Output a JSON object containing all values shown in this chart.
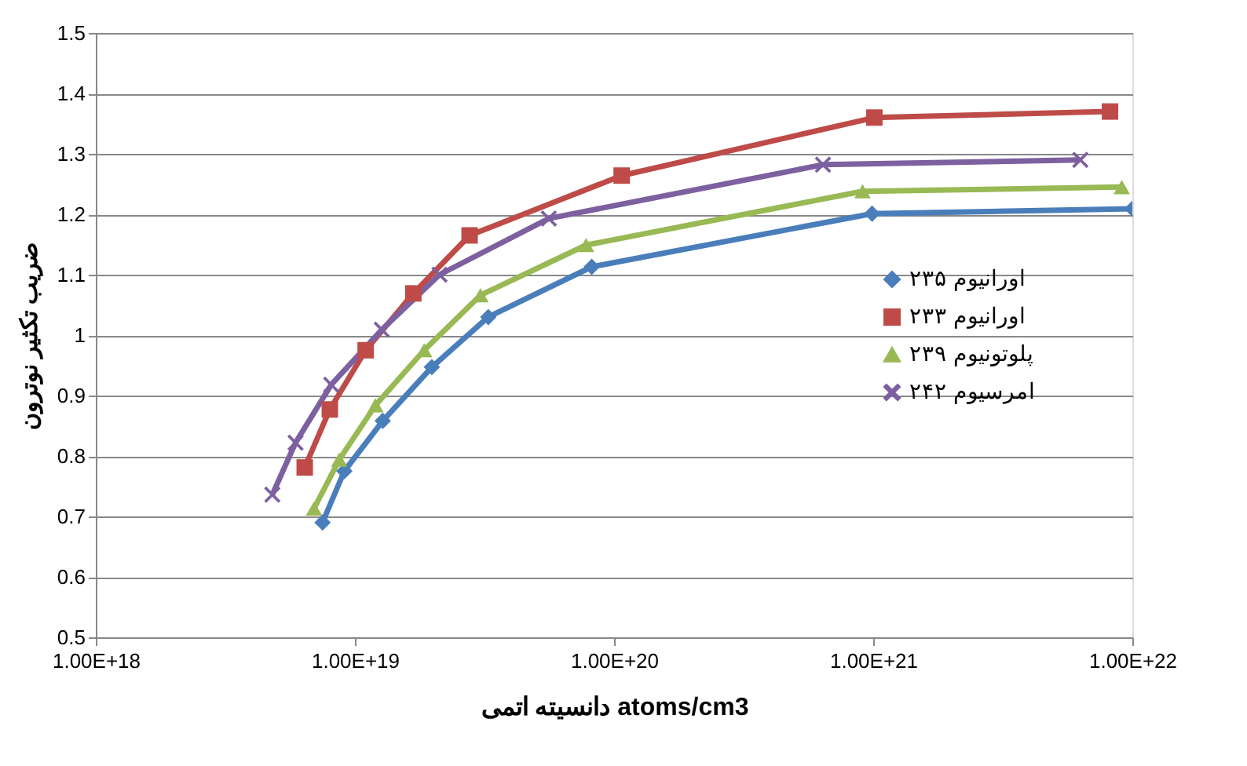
{
  "chart_data": {
    "type": "line",
    "xlabel": "دانسیته اتمی atoms/cm3",
    "ylabel": "ضریب تکثیر نوترون",
    "log": "x",
    "xlim": [
      1e+18,
      1e+22
    ],
    "xticks": [
      {
        "value": 1e+18,
        "label": "1.00E+18"
      },
      {
        "value": 1e+19,
        "label": "1.00E+19"
      },
      {
        "value": 1e+20,
        "label": "1.00E+20"
      },
      {
        "value": 1e+21,
        "label": "1.00E+21"
      },
      {
        "value": 1e+22,
        "label": "1.00E+22"
      }
    ],
    "ylim": [
      0.5,
      1.5
    ],
    "yticks": [
      0.5,
      0.6,
      0.7,
      0.8,
      0.9,
      1,
      1.1,
      1.2,
      1.3,
      1.4,
      1.5
    ],
    "grid": "y",
    "legend": "right",
    "series": [
      {
        "name": "اورانیوم ۲۳۵",
        "color": "#4a7ebb",
        "marker": "diamond",
        "x": [
          7.5e+18,
          9.1e+18,
          1.28e+19,
          1.98e+19,
          3.27e+19,
          8.2e+19,
          9.9e+20,
          1e+22
        ],
        "values": [
          0.69,
          0.775,
          0.858,
          0.947,
          1.03,
          1.113,
          1.201,
          1.209
        ]
      },
      {
        "name": "اورانیوم ۲۳۳",
        "color": "#be4b48",
        "marker": "square",
        "x": [
          6.4e+18,
          8e+18,
          1.1e+19,
          1.68e+19,
          2.77e+19,
          1.07e+20,
          1.01e+21,
          8.2e+21
        ],
        "values": [
          0.781,
          0.877,
          0.975,
          1.069,
          1.165,
          1.264,
          1.36,
          1.37
        ]
      },
      {
        "name": "پلوتونیوم ۲۳۹",
        "color": "#98b954",
        "marker": "triangle",
        "x": [
          6.95e+18,
          8.7e+18,
          1.2e+19,
          1.85e+19,
          3.05e+19,
          7.8e+19,
          9.1e+20,
          9.1e+21
        ],
        "values": [
          0.713,
          0.794,
          0.884,
          0.975,
          1.066,
          1.149,
          1.238,
          1.245
        ]
      },
      {
        "name": "امرسیوم ۲۴۲",
        "color": "#7d60a0",
        "marker": "cross",
        "x": [
          4.8e+18,
          5.9e+18,
          8.1e+18,
          1.27e+19,
          2.12e+19,
          5.6e+19,
          6.4e+20,
          6.3e+21
        ],
        "values": [
          0.736,
          0.822,
          0.918,
          1.009,
          1.1,
          1.193,
          1.282,
          1.29
        ]
      }
    ]
  }
}
